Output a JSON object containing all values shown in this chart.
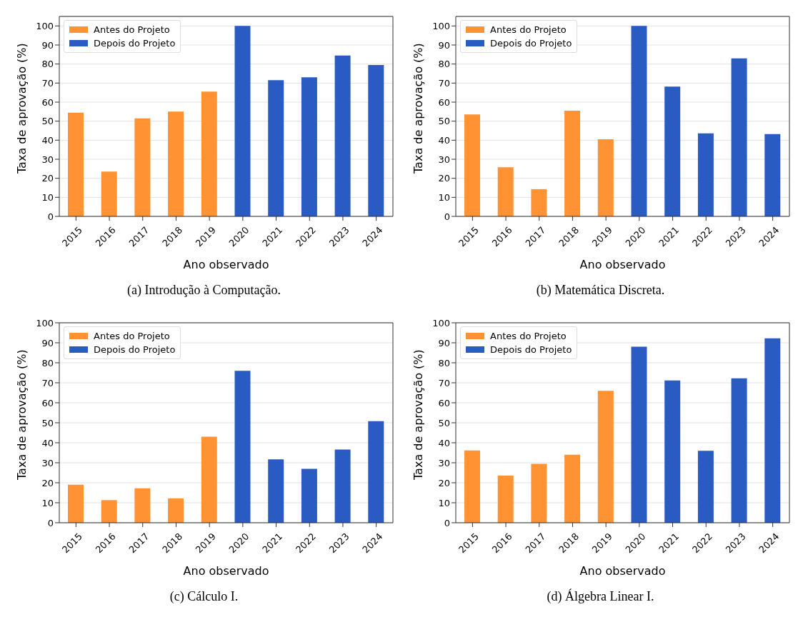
{
  "chart_data": [
    {
      "type": "bar",
      "title": "(a)  Introdução à Computação.",
      "xlabel": "Ano observado",
      "ylabel": "Taxa de aprovação (%)",
      "categories": [
        "2015",
        "2016",
        "2017",
        "2018",
        "2019",
        "2020",
        "2021",
        "2022",
        "2023",
        "2024"
      ],
      "series": [
        {
          "name": "Antes do Projeto",
          "color": "#ff9233",
          "values": [
            54.5,
            23.5,
            51.5,
            55,
            65.5,
            null,
            null,
            null,
            null,
            null
          ]
        },
        {
          "name": "Depois do Projeto",
          "color": "#2a5bc2",
          "values": [
            null,
            null,
            null,
            null,
            null,
            100,
            71.5,
            73,
            84.5,
            79.5
          ]
        }
      ],
      "ylim": [
        0,
        105
      ],
      "yticks": [
        0,
        10,
        20,
        30,
        40,
        50,
        60,
        70,
        80,
        90,
        100
      ],
      "grid": "y",
      "legend": "top left"
    },
    {
      "type": "bar",
      "title": "(b)  Matemática Discreta.",
      "xlabel": "Ano observado",
      "ylabel": "Taxa de aprovação (%)",
      "categories": [
        "2015",
        "2016",
        "2017",
        "2018",
        "2019",
        "2020",
        "2021",
        "2022",
        "2023",
        "2024"
      ],
      "series": [
        {
          "name": "Antes do Projeto",
          "color": "#ff9233",
          "values": [
            53.5,
            25.8,
            14.3,
            55.5,
            40.5,
            null,
            null,
            null,
            null,
            null
          ]
        },
        {
          "name": "Depois do Projeto",
          "color": "#2a5bc2",
          "values": [
            null,
            null,
            null,
            null,
            null,
            100,
            68.2,
            43.6,
            83,
            43.2
          ]
        }
      ],
      "ylim": [
        0,
        105
      ],
      "yticks": [
        0,
        10,
        20,
        30,
        40,
        50,
        60,
        70,
        80,
        90,
        100
      ],
      "grid": "y",
      "legend": "top left"
    },
    {
      "type": "bar",
      "title": "(c)  Cálculo I.",
      "xlabel": "Ano observado",
      "ylabel": "Taxa de aprovação (%)",
      "categories": [
        "2015",
        "2016",
        "2017",
        "2018",
        "2019",
        "2020",
        "2021",
        "2022",
        "2023",
        "2024"
      ],
      "series": [
        {
          "name": "Antes do Projeto",
          "color": "#ff9233",
          "values": [
            19,
            11.3,
            17.2,
            12.2,
            43,
            null,
            null,
            null,
            null,
            null
          ]
        },
        {
          "name": "Depois do Projeto",
          "color": "#2a5bc2",
          "values": [
            null,
            null,
            null,
            null,
            null,
            76,
            31.7,
            27,
            36.6,
            50.8
          ]
        }
      ],
      "ylim": [
        0,
        100
      ],
      "yticks": [
        0,
        10,
        20,
        30,
        40,
        50,
        60,
        70,
        80,
        90,
        100
      ],
      "grid": "y",
      "legend": "top left"
    },
    {
      "type": "bar",
      "title": "(d)  Álgebra Linear I.",
      "xlabel": "Ano observado",
      "ylabel": "Taxa de aprovação (%)",
      "categories": [
        "2015",
        "2016",
        "2017",
        "2018",
        "2019",
        "2020",
        "2021",
        "2022",
        "2023",
        "2024"
      ],
      "series": [
        {
          "name": "Antes do Projeto",
          "color": "#ff9233",
          "values": [
            36.2,
            23.6,
            29.5,
            34,
            66,
            null,
            null,
            null,
            null,
            null
          ]
        },
        {
          "name": "Depois do Projeto",
          "color": "#2a5bc2",
          "values": [
            null,
            null,
            null,
            null,
            null,
            88,
            71.2,
            36,
            72.2,
            92.2
          ]
        }
      ],
      "ylim": [
        0,
        100
      ],
      "yticks": [
        0,
        10,
        20,
        30,
        40,
        50,
        60,
        70,
        80,
        90,
        100
      ],
      "grid": "y",
      "legend": "top left"
    }
  ]
}
